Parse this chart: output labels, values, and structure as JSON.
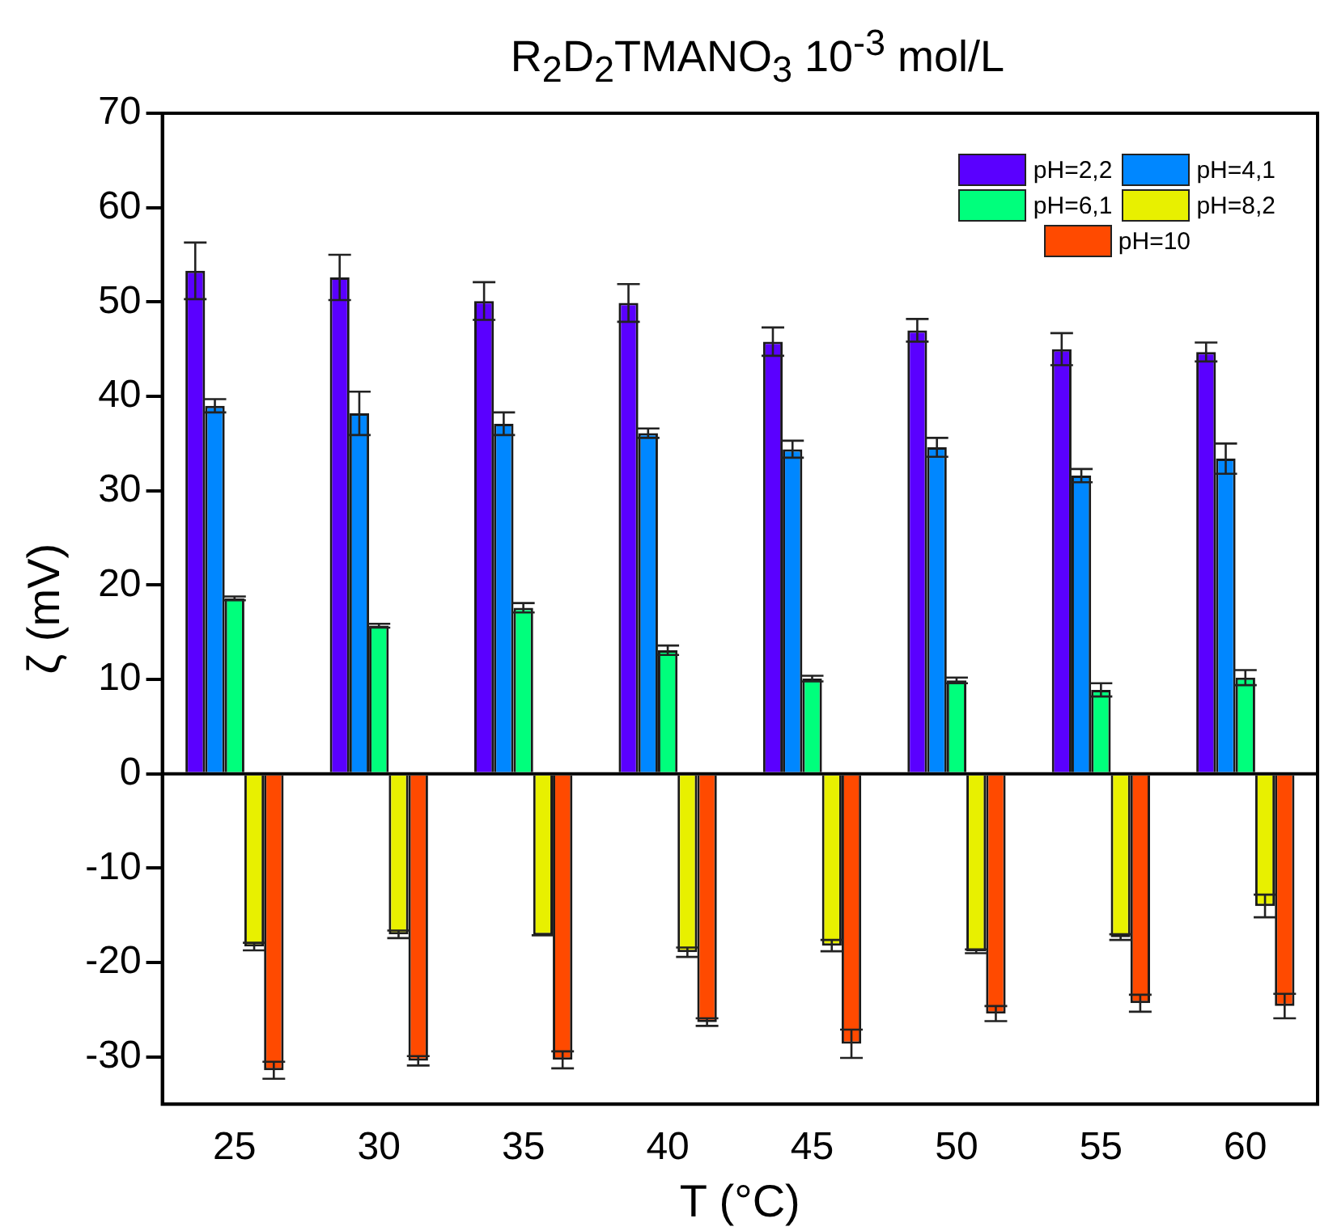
{
  "chart_data": {
    "type": "bar",
    "title": "R$_{2}$D$_{2}$TMANO$_{3}$ 10$^{-3}$ mol/L",
    "xlabel": "T (°C)",
    "ylabel": "ζ (mV)",
    "categories": [
      "25",
      "30",
      "35",
      "40",
      "45",
      "50",
      "55",
      "60"
    ],
    "series": [
      {
        "name": "pH=2,2",
        "color": "#5a00ff",
        "values": [
          53.3,
          52.6,
          50.1,
          49.9,
          45.8,
          47.0,
          45.0,
          44.7
        ],
        "errors": [
          3,
          2.4,
          2,
          2,
          1.5,
          1.2,
          1.7,
          1
        ]
      },
      {
        "name": "pH=4,1",
        "color": "#0087ff",
        "values": [
          39.0,
          38.2,
          37.1,
          36.1,
          34.4,
          34.6,
          31.6,
          33.4
        ],
        "errors": [
          0.7,
          2.3,
          1.2,
          0.5,
          0.9,
          1,
          0.7,
          1.6
        ]
      },
      {
        "name": "pH=6,1",
        "color": "#00ff7c",
        "values": [
          18.6,
          15.7,
          17.6,
          13.1,
          10.1,
          9.9,
          8.9,
          10.2
        ],
        "errors": [
          0.2,
          0.2,
          0.5,
          0.5,
          0.3,
          0.3,
          0.7,
          0.8
        ]
      },
      {
        "name": "pH=8,2",
        "color": "#e8f000",
        "values": [
          -18.3,
          -17.0,
          -17.1,
          -18.9,
          -18.2,
          -18.8,
          -17.3,
          -14.0
        ],
        "errors": [
          0.4,
          0.4,
          0,
          0.5,
          0.6,
          0.2,
          0.3,
          1.2
        ]
      },
      {
        "name": "pH=10",
        "color": "#ff4a00",
        "values": [
          -31.4,
          -30.4,
          -30.3,
          -26.3,
          -28.6,
          -25.4,
          -24.3,
          -24.6
        ],
        "errors": [
          0.9,
          0.5,
          0.9,
          0.4,
          1.5,
          0.8,
          0.9,
          1.3
        ]
      }
    ],
    "ylim": [
      -35,
      70
    ],
    "yticks": [
      -30,
      -20,
      -10,
      0,
      10,
      20,
      30,
      40,
      50,
      60,
      70
    ],
    "ref_lines": [
      {
        "axis": "y",
        "value": 0,
        "color": "#000000"
      }
    ],
    "grid": false,
    "legend": "top right"
  }
}
